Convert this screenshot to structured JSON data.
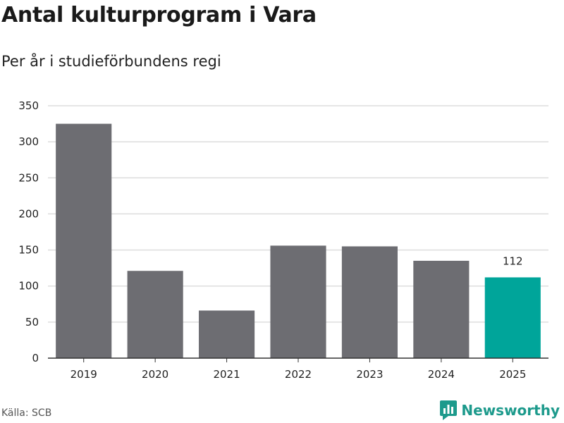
{
  "header": {
    "title": "Antal kulturprogram i Vara",
    "subtitle": "Per år i studieförbundens regi"
  },
  "footer": {
    "source": "Källa: SCB",
    "brand": "Newsworthy",
    "brand_icon": "newsworthy-logo-icon"
  },
  "colors": {
    "bar": "#6d6d72",
    "highlight": "#00a59a",
    "grid": "#dddddd",
    "axis": "#333333",
    "brand": "#1d9a8c"
  },
  "chart_data": {
    "type": "bar",
    "categories": [
      "2019",
      "2020",
      "2021",
      "2022",
      "2023",
      "2024",
      "2025"
    ],
    "values": [
      325,
      121,
      66,
      156,
      155,
      135,
      112
    ],
    "highlight_index": 6,
    "data_labels": [
      {
        "category": "2025",
        "text": "112"
      }
    ],
    "yticks": [
      0,
      50,
      100,
      150,
      200,
      250,
      300,
      350
    ],
    "ylim": [
      0,
      350
    ],
    "grid": true,
    "legend": "none",
    "title": "Antal kulturprogram i Vara",
    "subtitle": "Per år i studieförbundens regi",
    "xlabel": "",
    "ylabel": ""
  }
}
